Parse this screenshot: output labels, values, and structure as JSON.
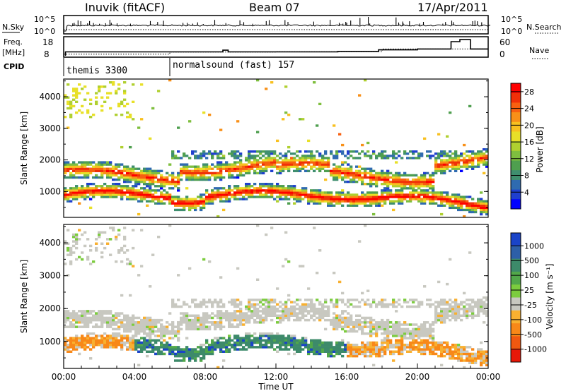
{
  "header": {
    "station": "Inuvik (fitACF)",
    "beam": "Beam 07",
    "date": "17/Apr/2011"
  },
  "sidebar": {
    "nsky": "N.Sky",
    "freq": "Freq.",
    "freq_unit": "[MHz]",
    "cpid": "CPID",
    "nsearch": "N.Search",
    "nave": "Nave"
  },
  "chart_data": [
    {
      "type": "line",
      "name": "noise-panel",
      "ylim_left_labels": [
        "10^5",
        "10^0"
      ],
      "ylim_right_labels": [
        "10^5",
        "10^0"
      ],
      "series": [
        {
          "name": "N.Sky",
          "style": "solid"
        },
        {
          "name": "N.Search",
          "style": "dotted"
        }
      ]
    },
    {
      "type": "line",
      "name": "freq-nave-panel",
      "left_ticks": [
        "18",
        "8"
      ],
      "right_ticks": [
        "60",
        "0"
      ],
      "freq_steps": [
        [
          0.1,
          10.6
        ],
        [
          6.0,
          10.6
        ],
        [
          9.0,
          11.4
        ],
        [
          9.3,
          10.6
        ],
        [
          15.5,
          10.8
        ],
        [
          17.8,
          11.6
        ],
        [
          20.0,
          12.0
        ],
        [
          21.9,
          15.6
        ],
        [
          22.4,
          16.6
        ],
        [
          23.0,
          12.0
        ],
        [
          24.0,
          12.0
        ]
      ],
      "nave_steps": [
        [
          0.0,
          9
        ],
        [
          6.0,
          15
        ],
        [
          12.0,
          16
        ],
        [
          18.0,
          24
        ],
        [
          24.0,
          24
        ]
      ]
    },
    {
      "type": "table",
      "name": "cpid-bar",
      "segments": [
        {
          "label": "themis 3300",
          "start": 0.1,
          "end": 6.0
        },
        {
          "label": "normalsound (fast) 157",
          "start": 6.0,
          "end": 24.0
        }
      ]
    },
    {
      "type": "heatmap",
      "name": "power-panel",
      "ylabel": "Slant Range [km]",
      "yticks": [
        "1000",
        "2000",
        "3000",
        "4000"
      ],
      "ylim": [
        180,
        4560
      ],
      "xlim": [
        0,
        24
      ],
      "colorbar_label": "Power [dB]",
      "colorbar_ticks": [
        "4",
        "8",
        "12",
        "16",
        "20",
        "24",
        "28"
      ],
      "colorbar_range": [
        0,
        30
      ],
      "colors": [
        "#0000ff",
        "#1f3fcf",
        "#2f6bb0",
        "#3f8f6f",
        "#4f9f4f",
        "#7fbf3f",
        "#b0d030",
        "#e8e028",
        "#f8c020",
        "#f89018",
        "#f86010",
        "#f03008",
        "#ff0000"
      ]
    },
    {
      "type": "heatmap",
      "name": "velocity-panel",
      "ylabel": "Slant Range [km]",
      "yticks": [
        "1000",
        "2000",
        "3000",
        "4000"
      ],
      "ylim": [
        180,
        4560
      ],
      "xlim": [
        0,
        24
      ],
      "xticks": [
        "00:00",
        "04:00",
        "08:00",
        "12:00",
        "16:00",
        "20:00",
        "00:00"
      ],
      "xlabel": "Time UT",
      "colorbar_label": "Velocity [m s⁻¹]",
      "colorbar_ticks": [
        "1000",
        "500",
        "100",
        "25",
        "-25",
        "-100",
        "-500",
        "-1000"
      ],
      "colors": [
        "#1a44c8",
        "#2d5fa8",
        "#3d8a6a",
        "#52a84a",
        "#7ccc3e",
        "#c8c8c0",
        "#f8b030",
        "#f88818",
        "#f05810",
        "#e81808"
      ]
    }
  ]
}
